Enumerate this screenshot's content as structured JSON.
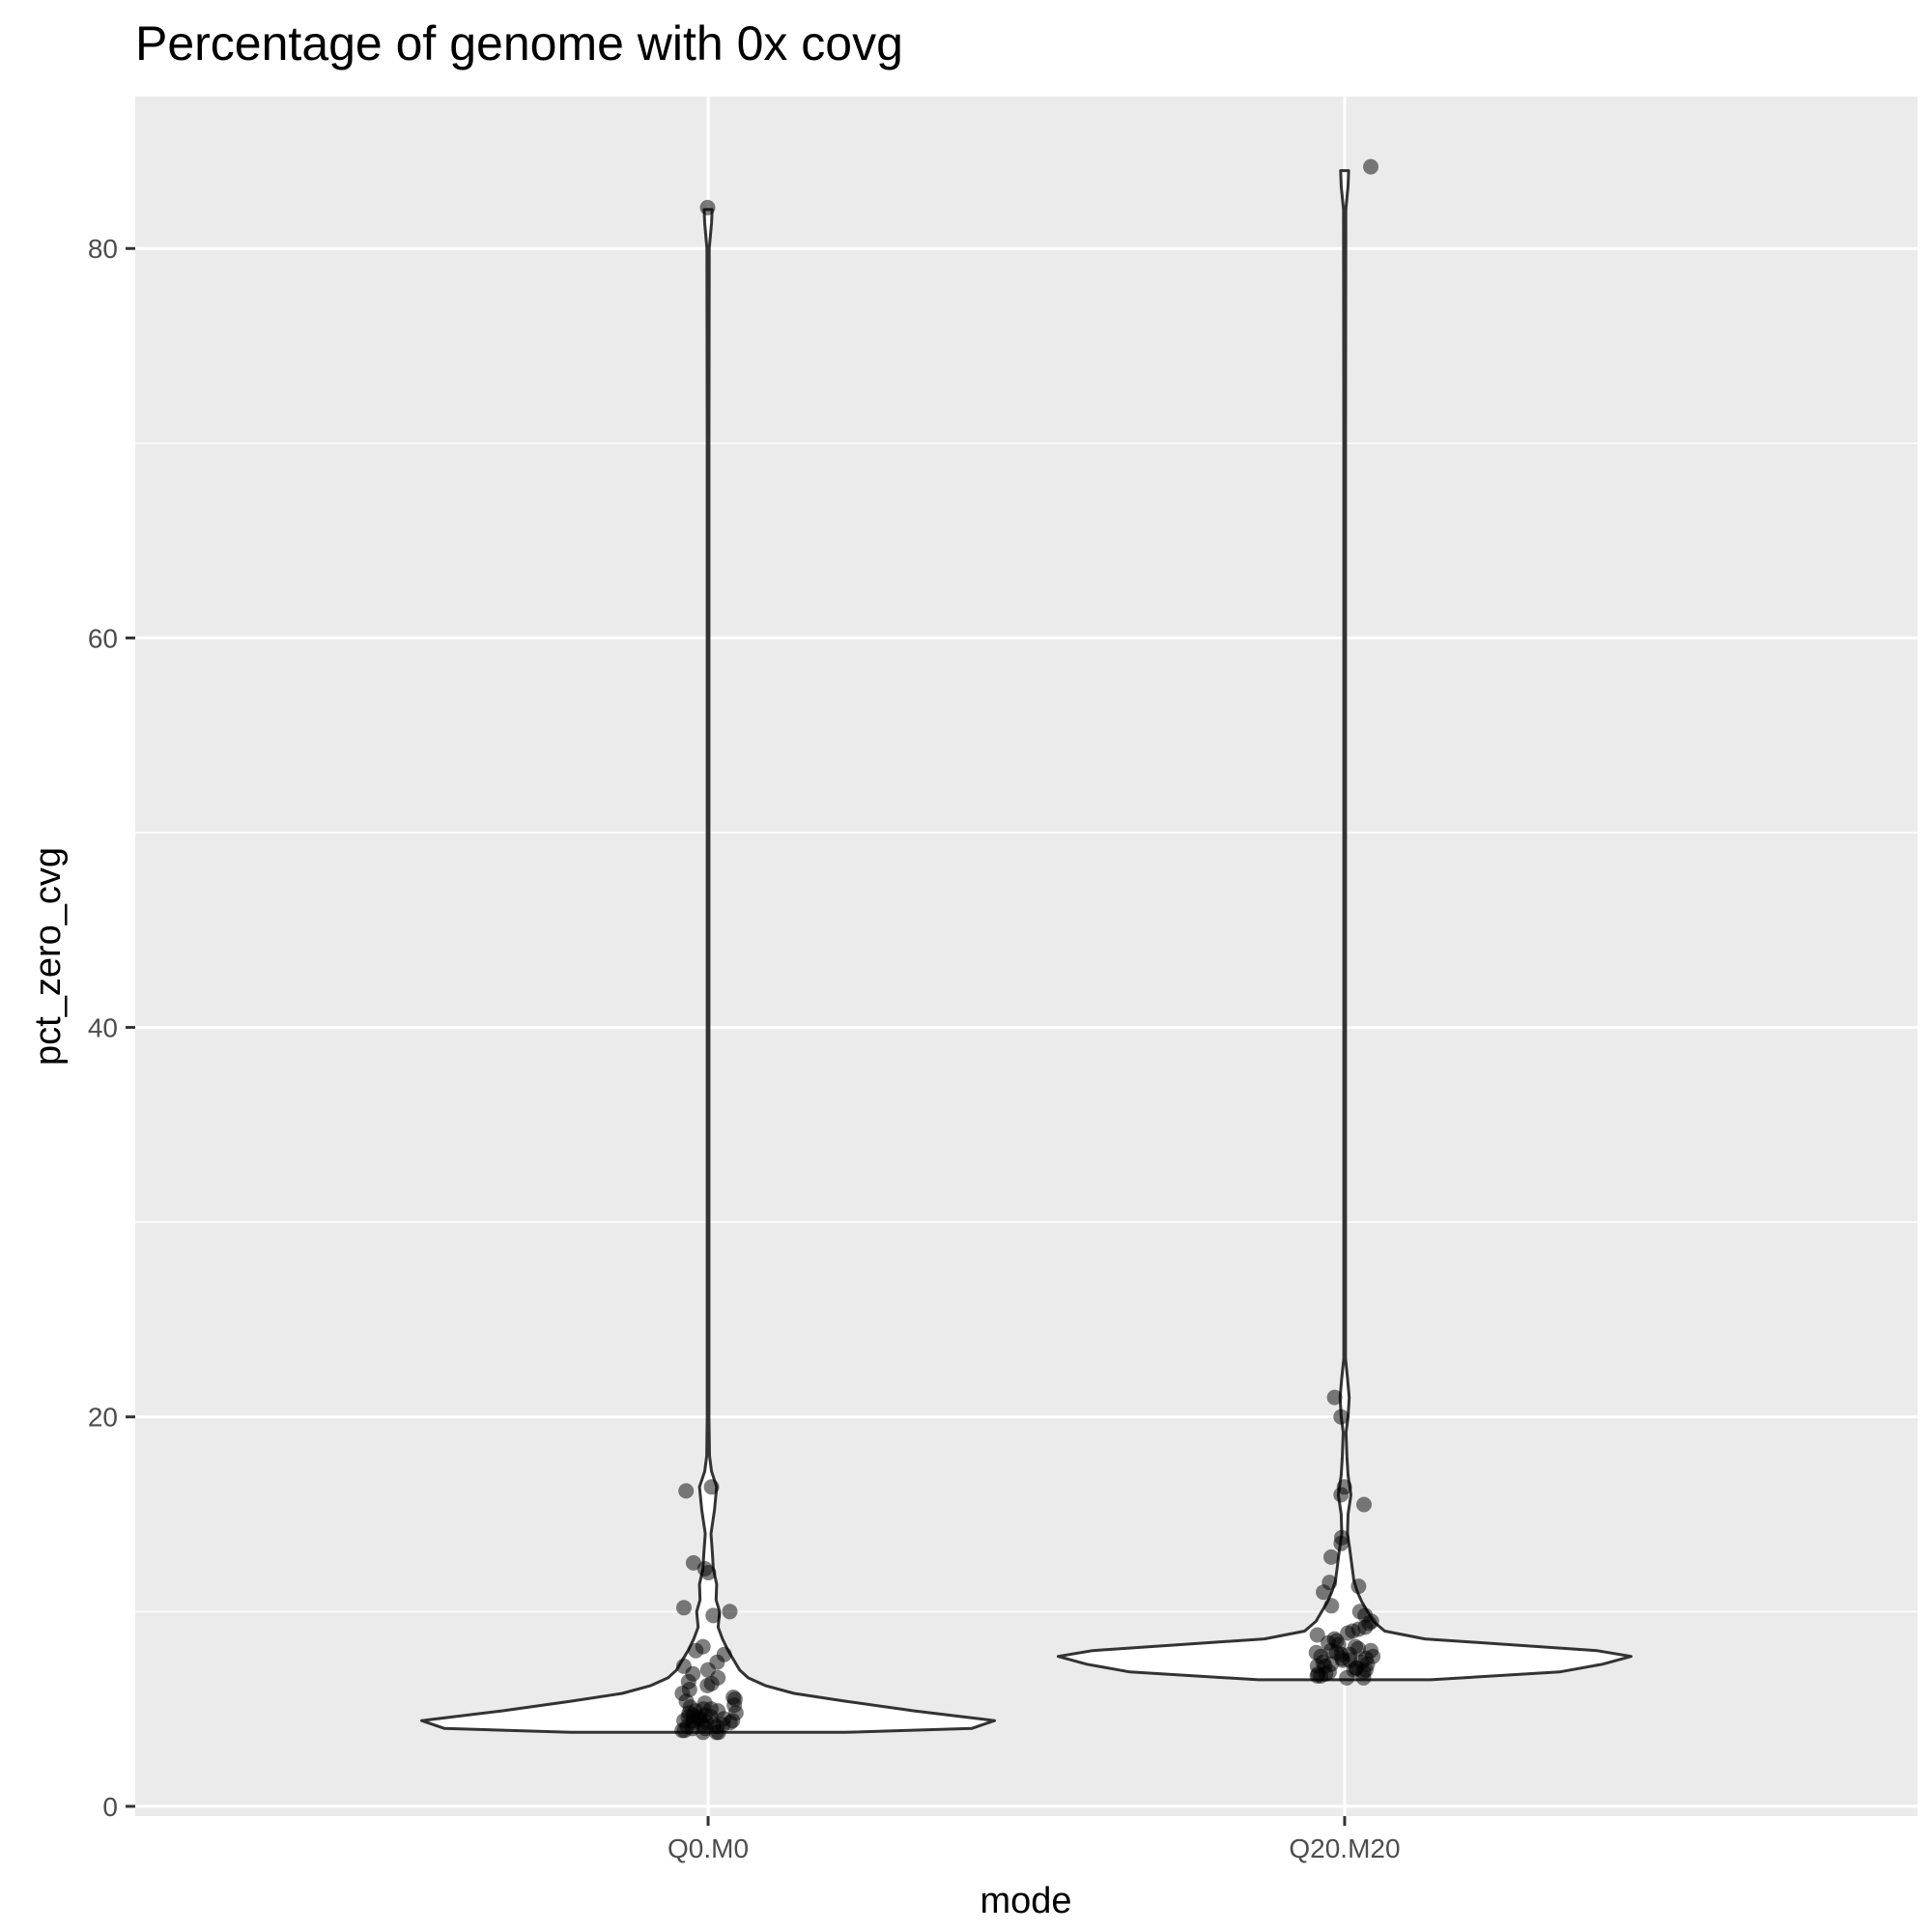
{
  "chart_data": {
    "type": "violin",
    "title": "Percentage of genome with 0x covg",
    "xlabel": "mode",
    "ylabel": "pct_zero_cvg",
    "categories": [
      "Q0.M0",
      "Q20.M20"
    ],
    "ylim": [
      -0.5,
      87.8
    ],
    "yticks": [
      0,
      20,
      40,
      60,
      80
    ],
    "grid": true,
    "panel_background": "#ebebeb",
    "grid_color": "#ffffff",
    "violin_fill": "#ffffff",
    "violin_stroke": "#333333",
    "point_color": "#000000",
    "point_alpha": 0.5,
    "violins": [
      {
        "category": "Q0.M0",
        "profile": [
          [
            3.8,
            0.48
          ],
          [
            4.0,
            0.92
          ],
          [
            4.4,
            1.0
          ],
          [
            4.9,
            0.72
          ],
          [
            5.4,
            0.48
          ],
          [
            5.8,
            0.3
          ],
          [
            6.2,
            0.2
          ],
          [
            6.6,
            0.14
          ],
          [
            7.0,
            0.11
          ],
          [
            7.5,
            0.09
          ],
          [
            8.0,
            0.07
          ],
          [
            8.6,
            0.05
          ],
          [
            9.2,
            0.035
          ],
          [
            10.0,
            0.04
          ],
          [
            10.6,
            0.028
          ],
          [
            11.4,
            0.03
          ],
          [
            12.2,
            0.018
          ],
          [
            13.0,
            0.015
          ],
          [
            14.0,
            0.01
          ],
          [
            15.2,
            0.022
          ],
          [
            16.4,
            0.03
          ],
          [
            17.2,
            0.012
          ],
          [
            18.0,
            0.005
          ],
          [
            20,
            0.003
          ],
          [
            30,
            0.003
          ],
          [
            50,
            0.003
          ],
          [
            70,
            0.003
          ],
          [
            80,
            0.004
          ],
          [
            81.3,
            0.012
          ],
          [
            82.0,
            0.014
          ]
        ],
        "points": [
          82.1,
          16.4,
          16.2,
          12.5,
          12.2,
          12.0,
          10.2,
          10.0,
          9.8,
          8.2,
          8.0,
          7.8,
          7.4,
          7.2,
          7.0,
          6.8,
          6.6,
          6.4,
          6.3,
          6.2,
          6.0,
          5.8,
          5.6,
          5.5,
          5.4,
          5.3,
          5.2,
          5.1,
          5.0,
          5.0,
          4.9,
          4.9,
          4.8,
          4.8,
          4.7,
          4.7,
          4.6,
          4.6,
          4.6,
          4.5,
          4.5,
          4.5,
          4.4,
          4.4,
          4.4,
          4.3,
          4.3,
          4.3,
          4.2,
          4.2,
          4.2,
          4.1,
          4.1,
          4.0,
          4.0,
          3.9,
          3.9,
          3.8,
          3.8,
          3.8
        ]
      },
      {
        "category": "Q20.M20",
        "profile": [
          [
            6.5,
            0.3
          ],
          [
            6.9,
            0.75
          ],
          [
            7.3,
            0.9
          ],
          [
            7.7,
            1.0
          ],
          [
            8.0,
            0.88
          ],
          [
            8.3,
            0.58
          ],
          [
            8.6,
            0.28
          ],
          [
            9.0,
            0.14
          ],
          [
            9.5,
            0.1
          ],
          [
            10.0,
            0.08
          ],
          [
            10.5,
            0.06
          ],
          [
            11.0,
            0.045
          ],
          [
            11.6,
            0.032
          ],
          [
            12.4,
            0.025
          ],
          [
            13.2,
            0.018
          ],
          [
            14.0,
            0.01
          ],
          [
            15.0,
            0.012
          ],
          [
            16.0,
            0.022
          ],
          [
            17.0,
            0.012
          ],
          [
            18.0,
            0.008
          ],
          [
            19.2,
            0.005
          ],
          [
            20.0,
            0.012
          ],
          [
            21.0,
            0.016
          ],
          [
            22.0,
            0.01
          ],
          [
            23.0,
            0.003
          ],
          [
            30,
            0.003
          ],
          [
            50,
            0.003
          ],
          [
            70,
            0.003
          ],
          [
            82,
            0.004
          ],
          [
            83.2,
            0.012
          ],
          [
            84.0,
            0.014
          ]
        ],
        "points": [
          84.2,
          21.0,
          20.0,
          16.4,
          16.0,
          15.5,
          13.8,
          13.5,
          12.8,
          11.5,
          11.3,
          11.0,
          10.3,
          10.0,
          9.8,
          9.5,
          9.4,
          9.2,
          9.1,
          9.0,
          8.9,
          8.8,
          8.6,
          8.5,
          8.4,
          8.3,
          8.2,
          8.1,
          8.0,
          8.0,
          7.9,
          7.9,
          7.8,
          7.8,
          7.7,
          7.7,
          7.6,
          7.6,
          7.5,
          7.5,
          7.4,
          7.4,
          7.3,
          7.3,
          7.2,
          7.2,
          7.1,
          7.1,
          7.0,
          7.0,
          6.9,
          6.9,
          6.8,
          6.8,
          6.7,
          6.7,
          6.6,
          6.6
        ]
      }
    ]
  }
}
